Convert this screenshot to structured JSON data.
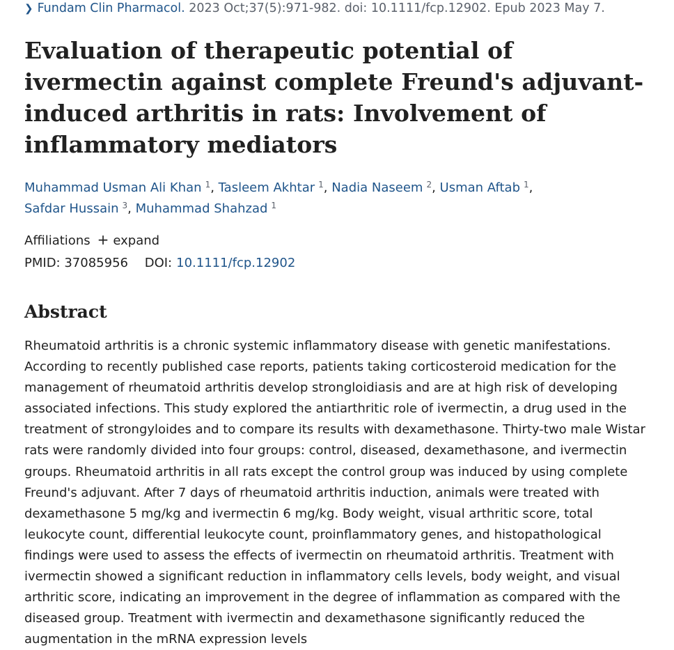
{
  "citation": {
    "journal": "Fundam Clin Pharmacol.",
    "details": " 2023 Oct;37(5):971-982. doi: 10.1111/fcp.12902. Epub 2023 May 7."
  },
  "title": "Evaluation of therapeutic potential of ivermectin against complete Freund's adjuvant-induced arthritis in rats: Involvement of inflammatory mediators",
  "authors": [
    {
      "name": "Muhammad Usman Ali Khan",
      "aff": "1"
    },
    {
      "name": "Tasleem Akhtar",
      "aff": "1"
    },
    {
      "name": "Nadia Naseem",
      "aff": "2"
    },
    {
      "name": "Usman Aftab",
      "aff": "1"
    },
    {
      "name": "Safdar Hussain",
      "aff": "3"
    },
    {
      "name": "Muhammad Shahzad",
      "aff": "1"
    }
  ],
  "affiliations": {
    "label": "Affiliations",
    "expand_label": "expand",
    "expand_icon": "+"
  },
  "ids": {
    "pmid_label": "PMID:",
    "pmid": "37085956",
    "doi_label": "DOI:",
    "doi": "10.1111/fcp.12902"
  },
  "abstract": {
    "heading": "Abstract",
    "text": "Rheumatoid arthritis is a chronic systemic inflammatory disease with genetic manifestations. According to recently published case reports, patients taking corticosteroid medication for the management of rheumatoid arthritis develop strongloidiasis and are at high risk of developing associated infections. This study explored the antiarthritic role of ivermectin, a drug used in the treatment of strongyloides and to compare its results with dexamethasone. Thirty-two male Wistar rats were randomly divided into four groups: control, diseased, dexamethasone, and ivermectin groups. Rheumatoid arthritis in all rats except the control group was induced by using complete Freund's adjuvant. After 7 days of rheumatoid arthritis induction, animals were treated with dexamethasone 5 mg/kg and ivermectin 6 mg/kg. Body weight, visual arthritic score, total leukocyte count, differential leukocyte count, proinflammatory genes, and histopathological findings were used to assess the effects of ivermectin on rheumatoid arthritis. Treatment with ivermectin showed a significant reduction in inflammatory cells levels, body weight, and visual arthritic score, indicating an improvement in the degree of inflammation as compared with the diseased group. Treatment with ivermectin and dexamethasone significantly reduced the augmentation in the mRNA expression levels"
  },
  "colors": {
    "link": "#20558a",
    "text": "#212121",
    "muted": "#5b616b"
  }
}
